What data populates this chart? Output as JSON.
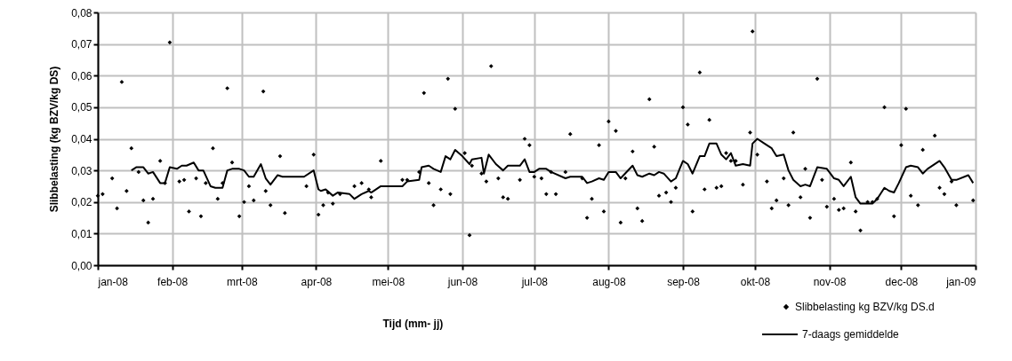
{
  "chart_data": {
    "type": "scatter",
    "xlabel": "Tijd (mm- jj)",
    "ylabel": "Slibbelasting (kg BZV/kg DS)",
    "legend": "bottom right",
    "grid": true,
    "line_style": "solid",
    "xlim": [
      "2008-01-01",
      "2009-01-01"
    ],
    "xticks": [
      {
        "value": "2008-01-01",
        "label": "jan-08"
      },
      {
        "value": "2008-02-01",
        "label": "feb-08"
      },
      {
        "value": "2008-03-01",
        "label": "mrt-08"
      },
      {
        "value": "2008-04-01",
        "label": "apr-08"
      },
      {
        "value": "2008-05-01",
        "label": "mei-08"
      },
      {
        "value": "2008-06-01",
        "label": "jun-08"
      },
      {
        "value": "2008-07-01",
        "label": "jul-08"
      },
      {
        "value": "2008-08-01",
        "label": "aug-08"
      },
      {
        "value": "2008-09-01",
        "label": "sep-08"
      },
      {
        "value": "2008-10-01",
        "label": "okt-08"
      },
      {
        "value": "2008-11-01",
        "label": "nov-08"
      },
      {
        "value": "2008-12-01",
        "label": "dec-08"
      },
      {
        "value": "2009-01-01",
        "label": "jan-09"
      }
    ],
    "ylim": [
      0,
      0.08
    ],
    "yticks": [
      {
        "value": 0,
        "label": "0,00"
      },
      {
        "value": 0.01,
        "label": "0,01"
      },
      {
        "value": 0.02,
        "label": "0,02"
      },
      {
        "value": 0.03,
        "label": "0,03"
      },
      {
        "value": 0.04,
        "label": "0,04"
      },
      {
        "value": 0.05,
        "label": "0,05"
      },
      {
        "value": 0.06,
        "label": "0,06"
      },
      {
        "value": 0.07,
        "label": "0,07"
      },
      {
        "value": 0.08,
        "label": "0,08"
      }
    ],
    "series": [
      {
        "name": "Slibbelasting kg BZV/kg DS.d",
        "marker": "diamond",
        "color": "#000000",
        "x": [
          "2008-01-01",
          "2008-01-03",
          "2008-01-07",
          "2008-01-09",
          "2008-01-11",
          "2008-01-13",
          "2008-01-15",
          "2008-01-18",
          "2008-01-20",
          "2008-01-22",
          "2008-01-24",
          "2008-01-27",
          "2008-01-29",
          "2008-01-31",
          "2008-02-04",
          "2008-02-06",
          "2008-02-08",
          "2008-02-11",
          "2008-02-13",
          "2008-02-15",
          "2008-02-18",
          "2008-02-20",
          "2008-02-22",
          "2008-02-24",
          "2008-02-26",
          "2008-02-29",
          "2008-03-02",
          "2008-03-04",
          "2008-03-06",
          "2008-03-10",
          "2008-03-11",
          "2008-03-13",
          "2008-03-17",
          "2008-03-19",
          "2008-03-28",
          "2008-03-31",
          "2008-04-02",
          "2008-04-04",
          "2008-04-06",
          "2008-04-08",
          "2008-04-11",
          "2008-04-17",
          "2008-04-20",
          "2008-04-23",
          "2008-04-24",
          "2008-04-28",
          "2008-05-07",
          "2008-05-09",
          "2008-05-14",
          "2008-05-16",
          "2008-05-18",
          "2008-05-20",
          "2008-05-23",
          "2008-05-26",
          "2008-05-27",
          "2008-05-29",
          "2008-06-02",
          "2008-06-04",
          "2008-06-05",
          "2008-06-09",
          "2008-06-11",
          "2008-06-13",
          "2008-06-16",
          "2008-06-18",
          "2008-06-20",
          "2008-06-25",
          "2008-06-27",
          "2008-06-29",
          "2008-07-01",
          "2008-07-04",
          "2008-07-06",
          "2008-07-08",
          "2008-07-10",
          "2008-07-14",
          "2008-07-16",
          "2008-07-21",
          "2008-07-23",
          "2008-07-25",
          "2008-07-28",
          "2008-07-30",
          "2008-08-01",
          "2008-08-04",
          "2008-08-06",
          "2008-08-08",
          "2008-08-11",
          "2008-08-13",
          "2008-08-15",
          "2008-08-18",
          "2008-08-20",
          "2008-08-22",
          "2008-08-25",
          "2008-08-27",
          "2008-08-29",
          "2008-09-01",
          "2008-09-03",
          "2008-09-05",
          "2008-09-08",
          "2008-09-10",
          "2008-09-12",
          "2008-09-15",
          "2008-09-17",
          "2008-09-19",
          "2008-09-21",
          "2008-09-23",
          "2008-09-26",
          "2008-09-29",
          "2008-09-30",
          "2008-10-02",
          "2008-10-06",
          "2008-10-08",
          "2008-10-10",
          "2008-10-13",
          "2008-10-15",
          "2008-10-17",
          "2008-10-20",
          "2008-10-22",
          "2008-10-24",
          "2008-10-27",
          "2008-10-29",
          "2008-10-31",
          "2008-11-03",
          "2008-11-05",
          "2008-11-07",
          "2008-11-10",
          "2008-11-12",
          "2008-11-14",
          "2008-11-17",
          "2008-11-19",
          "2008-11-21",
          "2008-11-24",
          "2008-11-28",
          "2008-12-01",
          "2008-12-03",
          "2008-12-05",
          "2008-12-08",
          "2008-12-10",
          "2008-12-15",
          "2008-12-17",
          "2008-12-19",
          "2008-12-22",
          "2008-12-24",
          "2008-12-31"
        ],
        "values": [
          0.022,
          0.0225,
          0.0275,
          0.018,
          0.058,
          0.0235,
          0.037,
          0.0295,
          0.0205,
          0.0135,
          0.021,
          0.033,
          0.026,
          0.0705,
          0.0265,
          0.027,
          0.017,
          0.0275,
          0.0155,
          0.026,
          0.037,
          0.021,
          0.026,
          0.056,
          0.0325,
          0.0155,
          0.02,
          0.025,
          0.0205,
          0.055,
          0.0235,
          0.019,
          0.0345,
          0.0165,
          0.025,
          0.035,
          0.016,
          0.019,
          0.023,
          0.0195,
          0.0225,
          0.025,
          0.026,
          0.024,
          0.0215,
          0.033,
          0.027,
          0.027,
          0.0295,
          0.0545,
          0.026,
          0.019,
          0.024,
          0.059,
          0.0225,
          0.0495,
          0.0355,
          0.0095,
          0.0315,
          0.029,
          0.0265,
          0.063,
          0.0275,
          0.0215,
          0.021,
          0.027,
          0.04,
          0.038,
          0.028,
          0.0275,
          0.0225,
          0.0295,
          0.0225,
          0.0295,
          0.0415,
          0.0275,
          0.015,
          0.021,
          0.038,
          0.017,
          0.0455,
          0.0425,
          0.0135,
          0.0275,
          0.036,
          0.018,
          0.014,
          0.0525,
          0.0375,
          0.022,
          0.023,
          0.02,
          0.0245,
          0.05,
          0.0445,
          0.017,
          0.061,
          0.024,
          0.046,
          0.0245,
          0.025,
          0.0355,
          0.033,
          0.033,
          0.0255,
          0.042,
          0.074,
          0.035,
          0.0265,
          0.018,
          0.0205,
          0.0275,
          0.019,
          0.042,
          0.0215,
          0.0305,
          0.015,
          0.059,
          0.027,
          0.0185,
          0.021,
          0.0175,
          0.018,
          0.0325,
          0.017,
          0.011,
          0.02,
          0.02,
          0.021,
          0.05,
          0.0155,
          0.038,
          0.0495,
          0.022,
          0.019,
          0.0365,
          0.041,
          0.0245,
          0.0225,
          0.0265,
          0.019,
          0.0205
        ]
      },
      {
        "name": "7-daags gemiddelde",
        "type": "line",
        "color": "#000000",
        "x": [
          "2008-01-15",
          "2008-01-17",
          "2008-01-20",
          "2008-01-22",
          "2008-01-24",
          "2008-01-27",
          "2008-01-29",
          "2008-01-31",
          "2008-02-03",
          "2008-02-05",
          "2008-02-07",
          "2008-02-10",
          "2008-02-12",
          "2008-02-14",
          "2008-02-17",
          "2008-02-19",
          "2008-02-22",
          "2008-02-24",
          "2008-02-26",
          "2008-02-29",
          "2008-03-02",
          "2008-03-04",
          "2008-03-06",
          "2008-03-09",
          "2008-03-11",
          "2008-03-13",
          "2008-03-16",
          "2008-03-18",
          "2008-03-27",
          "2008-03-31",
          "2008-04-02",
          "2008-04-03",
          "2008-04-05",
          "2008-04-08",
          "2008-04-10",
          "2008-04-15",
          "2008-04-17",
          "2008-04-20",
          "2008-04-23",
          "2008-04-24",
          "2008-04-28",
          "2008-05-07",
          "2008-05-09",
          "2008-05-14",
          "2008-05-15",
          "2008-05-18",
          "2008-05-20",
          "2008-05-23",
          "2008-05-25",
          "2008-05-27",
          "2008-05-29",
          "2008-06-01",
          "2008-06-04",
          "2008-06-05",
          "2008-06-09",
          "2008-06-10",
          "2008-06-12",
          "2008-06-15",
          "2008-06-18",
          "2008-06-20",
          "2008-06-25",
          "2008-06-27",
          "2008-06-29",
          "2008-07-01",
          "2008-07-03",
          "2008-07-06",
          "2008-07-08",
          "2008-07-14",
          "2008-07-16",
          "2008-07-21",
          "2008-07-23",
          "2008-07-25",
          "2008-07-28",
          "2008-07-30",
          "2008-08-01",
          "2008-08-04",
          "2008-08-06",
          "2008-08-11",
          "2008-08-13",
          "2008-08-15",
          "2008-08-18",
          "2008-08-20",
          "2008-08-22",
          "2008-08-24",
          "2008-08-27",
          "2008-08-29",
          "2008-09-01",
          "2008-09-03",
          "2008-09-05",
          "2008-09-08",
          "2008-09-10",
          "2008-09-12",
          "2008-09-15",
          "2008-09-17",
          "2008-09-19",
          "2008-09-21",
          "2008-09-23",
          "2008-09-26",
          "2008-09-29",
          "2008-09-30",
          "2008-10-02",
          "2008-10-05",
          "2008-10-08",
          "2008-10-10",
          "2008-10-13",
          "2008-10-15",
          "2008-10-17",
          "2008-10-20",
          "2008-10-22",
          "2008-10-24",
          "2008-10-27",
          "2008-10-31",
          "2008-11-03",
          "2008-11-05",
          "2008-11-07",
          "2008-11-10",
          "2008-11-12",
          "2008-11-14",
          "2008-11-16",
          "2008-11-19",
          "2008-11-21",
          "2008-11-24",
          "2008-11-26",
          "2008-11-28",
          "2008-11-30",
          "2008-12-03",
          "2008-12-05",
          "2008-12-08",
          "2008-12-10",
          "2008-12-12",
          "2008-12-17",
          "2008-12-19",
          "2008-12-22",
          "2008-12-24",
          "2008-12-29",
          "2008-12-31"
        ],
        "values": [
          0.03,
          0.031,
          0.031,
          0.029,
          0.0295,
          0.026,
          0.026,
          0.031,
          0.0305,
          0.0315,
          0.0315,
          0.0325,
          0.03,
          0.03,
          0.025,
          0.0245,
          0.0245,
          0.03,
          0.0305,
          0.0305,
          0.03,
          0.028,
          0.028,
          0.032,
          0.0275,
          0.0255,
          0.0285,
          0.028,
          0.028,
          0.03,
          0.024,
          0.0235,
          0.024,
          0.022,
          0.023,
          0.0225,
          0.021,
          0.0225,
          0.0235,
          0.023,
          0.025,
          0.025,
          0.0265,
          0.027,
          0.031,
          0.0315,
          0.0305,
          0.0295,
          0.0345,
          0.0335,
          0.0365,
          0.0345,
          0.032,
          0.0335,
          0.034,
          0.029,
          0.035,
          0.032,
          0.03,
          0.0315,
          0.0315,
          0.0335,
          0.0295,
          0.0295,
          0.0305,
          0.0305,
          0.0295,
          0.0275,
          0.028,
          0.028,
          0.026,
          0.0265,
          0.0275,
          0.027,
          0.0295,
          0.0295,
          0.0275,
          0.0315,
          0.0285,
          0.028,
          0.029,
          0.0285,
          0.0295,
          0.029,
          0.0265,
          0.0275,
          0.033,
          0.032,
          0.029,
          0.0345,
          0.0345,
          0.0385,
          0.0385,
          0.035,
          0.0335,
          0.0355,
          0.0315,
          0.032,
          0.0315,
          0.0385,
          0.04,
          0.0385,
          0.037,
          0.0345,
          0.035,
          0.03,
          0.027,
          0.025,
          0.0255,
          0.025,
          0.031,
          0.0305,
          0.0275,
          0.027,
          0.025,
          0.028,
          0.0215,
          0.0195,
          0.0195,
          0.0195,
          0.021,
          0.0245,
          0.0235,
          0.023,
          0.026,
          0.031,
          0.0315,
          0.031,
          0.029,
          0.0305,
          0.033,
          0.031,
          0.027,
          0.027,
          0.0285,
          0.026
        ]
      }
    ]
  }
}
